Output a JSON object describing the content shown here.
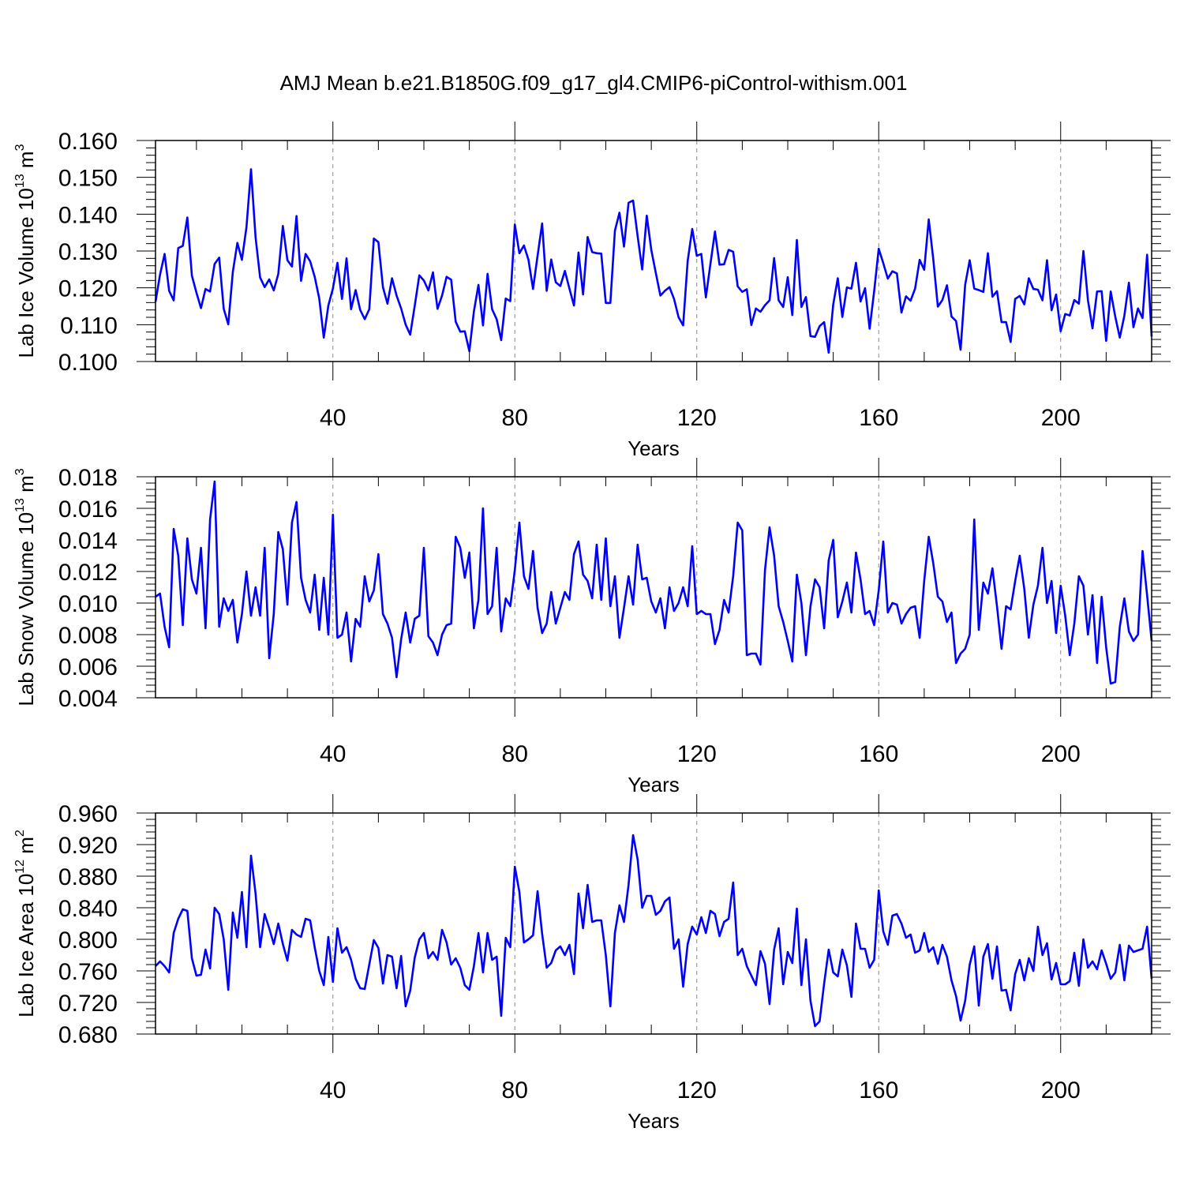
{
  "title": "AMJ Mean b.e21.B1850G.f09_g17_gl4.CMIP6-piControl-withism.001",
  "colors": {
    "series": "#0000ff",
    "axis": "#000000",
    "grid": "#888888"
  },
  "chart_data": [
    {
      "type": "line",
      "ylabel": {
        "main": "Lab Ice Volume 10",
        "exp": "13",
        "unit": " m",
        "unit_exp": "3"
      },
      "xlabel": "Years",
      "xlim": [
        1,
        220
      ],
      "ylim": [
        0.1,
        0.16
      ],
      "xticks": [
        40,
        80,
        120,
        160,
        200
      ],
      "xtick_labels": [
        "40",
        "80",
        "120",
        "160",
        "200"
      ],
      "yticks": [
        0.1,
        0.11,
        0.12,
        0.13,
        0.14,
        0.15,
        0.16
      ],
      "ytick_labels": [
        "0.100",
        "0.110",
        "0.120",
        "0.130",
        "0.140",
        "0.150",
        "0.160"
      ],
      "grid": "vertical dashed at major x ticks",
      "series": [
        {
          "name": "Lab Ice Volume",
          "x_start": 1,
          "values": [
            0.1162,
            0.1236,
            0.1292,
            0.1192,
            0.1166,
            0.1308,
            0.1314,
            0.1391,
            0.1233,
            0.1187,
            0.1145,
            0.1197,
            0.119,
            0.1265,
            0.1282,
            0.1143,
            0.1101,
            0.1243,
            0.1322,
            0.1276,
            0.1365,
            0.1522,
            0.1337,
            0.1228,
            0.1202,
            0.1223,
            0.1193,
            0.1238,
            0.1368,
            0.1275,
            0.1258,
            0.1395,
            0.1219,
            0.1292,
            0.1272,
            0.123,
            0.1171,
            0.1065,
            0.1152,
            0.1198,
            0.1268,
            0.117,
            0.128,
            0.1142,
            0.1194,
            0.114,
            0.1115,
            0.1142,
            0.1334,
            0.1324,
            0.1202,
            0.1157,
            0.1226,
            0.1179,
            0.1144,
            0.11,
            0.1073,
            0.1152,
            0.1234,
            0.122,
            0.1193,
            0.1242,
            0.1143,
            0.1179,
            0.123,
            0.1222,
            0.1108,
            0.1081,
            0.1082,
            0.1028,
            0.1136,
            0.1208,
            0.1098,
            0.1238,
            0.1142,
            0.1115,
            0.1058,
            0.1171,
            0.1164,
            0.1372,
            0.1294,
            0.1315,
            0.1276,
            0.1197,
            0.1287,
            0.1375,
            0.1192,
            0.1277,
            0.1215,
            0.1205,
            0.1246,
            0.1198,
            0.1152,
            0.1296,
            0.1182,
            0.1338,
            0.1297,
            0.1294,
            0.1293,
            0.1159,
            0.1159,
            0.1355,
            0.1404,
            0.1312,
            0.1431,
            0.1437,
            0.134,
            0.125,
            0.1396,
            0.1303,
            0.124,
            0.1179,
            0.1192,
            0.1202,
            0.117,
            0.112,
            0.1098,
            0.1273,
            0.136,
            0.1287,
            0.1292,
            0.1174,
            0.1265,
            0.1353,
            0.1263,
            0.1264,
            0.1303,
            0.1298,
            0.1204,
            0.1189,
            0.1196,
            0.1099,
            0.1144,
            0.1135,
            0.1153,
            0.1166,
            0.1281,
            0.1166,
            0.1148,
            0.1229,
            0.1126,
            0.133,
            0.1148,
            0.1175,
            0.1069,
            0.1067,
            0.1096,
            0.1107,
            0.1024,
            0.1155,
            0.1226,
            0.1121,
            0.1201,
            0.1198,
            0.1268,
            0.1163,
            0.1199,
            0.1089,
            0.1191,
            0.1306,
            0.1267,
            0.1225,
            0.1245,
            0.1239,
            0.1133,
            0.1177,
            0.1165,
            0.1198,
            0.1276,
            0.1249,
            0.1386,
            0.1277,
            0.1149,
            0.1167,
            0.1207,
            0.1122,
            0.111,
            0.1032,
            0.1208,
            0.1275,
            0.1198,
            0.1194,
            0.1189,
            0.1294,
            0.1176,
            0.1191,
            0.1107,
            0.1107,
            0.1053,
            0.117,
            0.1178,
            0.1155,
            0.1226,
            0.1197,
            0.1195,
            0.1166,
            0.1275,
            0.1139,
            0.1182,
            0.1082,
            0.1129,
            0.1125,
            0.1167,
            0.1157,
            0.13,
            0.1166,
            0.109,
            0.119,
            0.1191,
            0.1056,
            0.119,
            0.1122,
            0.1065,
            0.1124,
            0.1214,
            0.1093,
            0.1144,
            0.1118,
            0.129,
            0.1068
          ]
        }
      ]
    },
    {
      "type": "line",
      "ylabel": {
        "main": "Lab Snow Volume 10",
        "exp": "13",
        "unit": " m",
        "unit_exp": "3"
      },
      "xlabel": "Years",
      "xlim": [
        1,
        220
      ],
      "ylim": [
        0.004,
        0.018
      ],
      "xticks": [
        40,
        80,
        120,
        160,
        200
      ],
      "xtick_labels": [
        "40",
        "80",
        "120",
        "160",
        "200"
      ],
      "yticks": [
        0.004,
        0.006,
        0.008,
        0.01,
        0.012,
        0.014,
        0.016,
        0.018
      ],
      "ytick_labels": [
        "0.004",
        "0.006",
        "0.008",
        "0.010",
        "0.012",
        "0.014",
        "0.016",
        "0.018"
      ],
      "grid": "vertical dashed at major x ticks",
      "series": [
        {
          "name": "Lab Snow Volume",
          "x_start": 1,
          "values": [
            0.0104,
            0.0106,
            0.0085,
            0.0072,
            0.0147,
            0.013,
            0.0086,
            0.0141,
            0.0115,
            0.0106,
            0.0135,
            0.0084,
            0.0153,
            0.0177,
            0.0085,
            0.0103,
            0.0095,
            0.0102,
            0.0075,
            0.0093,
            0.012,
            0.0092,
            0.011,
            0.0092,
            0.0135,
            0.0065,
            0.0093,
            0.0145,
            0.0134,
            0.0099,
            0.0151,
            0.0164,
            0.0116,
            0.0102,
            0.0094,
            0.0118,
            0.0083,
            0.0116,
            0.008,
            0.0156,
            0.0078,
            0.008,
            0.0094,
            0.0063,
            0.009,
            0.0085,
            0.0117,
            0.0101,
            0.0108,
            0.0131,
            0.0093,
            0.0087,
            0.0078,
            0.0053,
            0.0077,
            0.0094,
            0.0075,
            0.009,
            0.0092,
            0.0135,
            0.0079,
            0.0075,
            0.0067,
            0.008,
            0.0086,
            0.0087,
            0.0142,
            0.0135,
            0.0116,
            0.0132,
            0.0084,
            0.0102,
            0.016,
            0.0093,
            0.0098,
            0.0135,
            0.0082,
            0.0103,
            0.0098,
            0.0121,
            0.0151,
            0.0117,
            0.0109,
            0.0133,
            0.0097,
            0.0081,
            0.0087,
            0.0107,
            0.0087,
            0.0097,
            0.0107,
            0.0102,
            0.0131,
            0.0139,
            0.0118,
            0.0114,
            0.0103,
            0.0137,
            0.0102,
            0.0141,
            0.0098,
            0.0117,
            0.0078,
            0.0097,
            0.0117,
            0.0099,
            0.0137,
            0.0115,
            0.0116,
            0.0101,
            0.0094,
            0.0103,
            0.0084,
            0.011,
            0.0095,
            0.01,
            0.011,
            0.0098,
            0.0136,
            0.0093,
            0.0095,
            0.0093,
            0.0093,
            0.0074,
            0.0083,
            0.0102,
            0.0094,
            0.0117,
            0.0151,
            0.0146,
            0.0067,
            0.0068,
            0.0068,
            0.0061,
            0.0121,
            0.0148,
            0.013,
            0.0098,
            0.0088,
            0.0076,
            0.0063,
            0.0118,
            0.01,
            0.0067,
            0.0098,
            0.0115,
            0.011,
            0.0084,
            0.0127,
            0.014,
            0.0091,
            0.0101,
            0.0113,
            0.0094,
            0.0132,
            0.0115,
            0.0093,
            0.0095,
            0.0086,
            0.0108,
            0.0139,
            0.0094,
            0.01,
            0.0099,
            0.0087,
            0.0093,
            0.0097,
            0.0098,
            0.0078,
            0.0114,
            0.0142,
            0.0125,
            0.0104,
            0.0101,
            0.0088,
            0.0094,
            0.0062,
            0.0068,
            0.0071,
            0.008,
            0.0153,
            0.0083,
            0.0113,
            0.0106,
            0.0122,
            0.0098,
            0.0071,
            0.0098,
            0.0096,
            0.0114,
            0.013,
            0.0109,
            0.0078,
            0.0099,
            0.0111,
            0.0135,
            0.01,
            0.0114,
            0.0081,
            0.0111,
            0.0092,
            0.0067,
            0.0087,
            0.0117,
            0.0111,
            0.008,
            0.0105,
            0.0062,
            0.0104,
            0.0072,
            0.0049,
            0.005,
            0.0085,
            0.0103,
            0.0082,
            0.0076,
            0.008,
            0.0133,
            0.0105,
            0.0076
          ]
        }
      ]
    },
    {
      "type": "line",
      "ylabel": {
        "main": "Lab Ice Area 10",
        "exp": "12",
        "unit": " m",
        "unit_exp": "2"
      },
      "xlabel": "Years",
      "xlim": [
        1,
        220
      ],
      "ylim": [
        0.68,
        0.96
      ],
      "xticks": [
        40,
        80,
        120,
        160,
        200
      ],
      "xtick_labels": [
        "40",
        "80",
        "120",
        "160",
        "200"
      ],
      "yticks": [
        0.68,
        0.72,
        0.76,
        0.8,
        0.84,
        0.88,
        0.92,
        0.96
      ],
      "ytick_labels": [
        "0.680",
        "0.720",
        "0.760",
        "0.800",
        "0.840",
        "0.880",
        "0.920",
        "0.960"
      ],
      "grid": "vertical dashed at major x ticks",
      "series": [
        {
          "name": "Lab Ice Area",
          "x_start": 1,
          "values": [
            0.766,
            0.772,
            0.766,
            0.758,
            0.808,
            0.826,
            0.838,
            0.836,
            0.776,
            0.754,
            0.755,
            0.787,
            0.763,
            0.84,
            0.832,
            0.8,
            0.736,
            0.834,
            0.802,
            0.86,
            0.79,
            0.906,
            0.858,
            0.79,
            0.832,
            0.814,
            0.794,
            0.82,
            0.794,
            0.773,
            0.812,
            0.806,
            0.803,
            0.826,
            0.824,
            0.79,
            0.76,
            0.742,
            0.803,
            0.746,
            0.814,
            0.783,
            0.79,
            0.774,
            0.75,
            0.738,
            0.737,
            0.768,
            0.799,
            0.789,
            0.744,
            0.78,
            0.778,
            0.738,
            0.779,
            0.715,
            0.735,
            0.777,
            0.8,
            0.808,
            0.776,
            0.784,
            0.774,
            0.812,
            0.796,
            0.768,
            0.776,
            0.764,
            0.742,
            0.736,
            0.766,
            0.808,
            0.758,
            0.808,
            0.774,
            0.778,
            0.703,
            0.802,
            0.79,
            0.892,
            0.86,
            0.796,
            0.8,
            0.805,
            0.861,
            0.807,
            0.764,
            0.77,
            0.786,
            0.791,
            0.78,
            0.793,
            0.756,
            0.858,
            0.814,
            0.869,
            0.822,
            0.824,
            0.824,
            0.78,
            0.715,
            0.808,
            0.843,
            0.822,
            0.869,
            0.932,
            0.901,
            0.84,
            0.855,
            0.855,
            0.831,
            0.836,
            0.848,
            0.853,
            0.788,
            0.8,
            0.74,
            0.794,
            0.816,
            0.806,
            0.828,
            0.808,
            0.836,
            0.832,
            0.804,
            0.822,
            0.826,
            0.872,
            0.78,
            0.788,
            0.766,
            0.754,
            0.742,
            0.785,
            0.769,
            0.718,
            0.787,
            0.814,
            0.743,
            0.784,
            0.77,
            0.839,
            0.742,
            0.8,
            0.722,
            0.69,
            0.696,
            0.744,
            0.787,
            0.758,
            0.753,
            0.787,
            0.767,
            0.727,
            0.82,
            0.788,
            0.788,
            0.764,
            0.774,
            0.862,
            0.81,
            0.793,
            0.83,
            0.832,
            0.82,
            0.802,
            0.806,
            0.783,
            0.786,
            0.808,
            0.784,
            0.79,
            0.769,
            0.793,
            0.778,
            0.748,
            0.728,
            0.697,
            0.722,
            0.768,
            0.791,
            0.716,
            0.778,
            0.794,
            0.75,
            0.791,
            0.735,
            0.736,
            0.71,
            0.756,
            0.774,
            0.748,
            0.776,
            0.76,
            0.816,
            0.78,
            0.795,
            0.749,
            0.77,
            0.743,
            0.743,
            0.747,
            0.783,
            0.741,
            0.8,
            0.764,
            0.772,
            0.762,
            0.786,
            0.769,
            0.75,
            0.758,
            0.793,
            0.748,
            0.792,
            0.784,
            0.786,
            0.788,
            0.816,
            0.75
          ]
        }
      ]
    }
  ]
}
